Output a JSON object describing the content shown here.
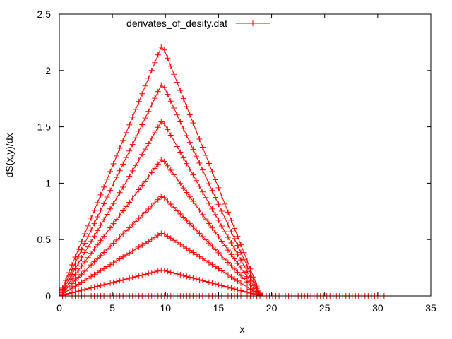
{
  "chart_data": {
    "type": "line",
    "title": "",
    "xlabel": "x",
    "ylabel": "dS(x,y)/dx",
    "xlim": [
      0,
      35
    ],
    "ylim": [
      0,
      2.5
    ],
    "xticks": [
      0,
      5,
      10,
      15,
      20,
      25,
      30,
      35
    ],
    "yticks": [
      0,
      0.5,
      1,
      1.5,
      2,
      2.5
    ],
    "xtick_labels": [
      "0",
      "5",
      "10",
      "15",
      "20",
      "25",
      "30",
      "35"
    ],
    "ytick_labels": [
      "0",
      "0.5",
      "1",
      "1.5",
      "2",
      "2.5"
    ],
    "grid": false,
    "legend_position": "top-left",
    "legend_label": "derivates_of_desity.dat",
    "series_color": "#ff0000",
    "marker": "plus",
    "point_spacing": 0.3,
    "zero_baseline_to": 30.6,
    "series": [
      {
        "peak_x": 9.7,
        "peak_y": 0.23,
        "x_end": 19.0
      },
      {
        "peak_x": 9.7,
        "peak_y": 0.56,
        "x_end": 19.0
      },
      {
        "peak_x": 9.7,
        "peak_y": 0.89,
        "x_end": 19.0
      },
      {
        "peak_x": 9.7,
        "peak_y": 1.22,
        "x_end": 19.0
      },
      {
        "peak_x": 9.7,
        "peak_y": 1.56,
        "x_end": 19.0
      },
      {
        "peak_x": 9.7,
        "peak_y": 1.89,
        "x_end": 19.0
      },
      {
        "peak_x": 9.7,
        "peak_y": 2.23,
        "x_end": 19.0
      }
    ]
  }
}
